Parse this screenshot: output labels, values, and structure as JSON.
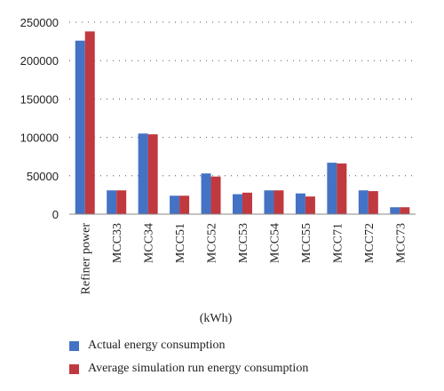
{
  "chart_data": {
    "type": "bar",
    "categories": [
      "Refiner power",
      "MCC33",
      "MCC34",
      "MCC51",
      "MCC52",
      "MCC53",
      "MCC54",
      "MCC55",
      "MCC71",
      "MCC72",
      "MCC73"
    ],
    "series": [
      {
        "name": "Actual energy consumption",
        "color": "#4472c4",
        "values": [
          226000,
          31000,
          105000,
          24000,
          53000,
          26000,
          31000,
          27000,
          67000,
          31000,
          9000
        ]
      },
      {
        "name": "Average simulation run energy consumption",
        "color": "#c0393f",
        "values": [
          238000,
          31000,
          104000,
          24000,
          49000,
          28000,
          31000,
          23000,
          66000,
          30000,
          9000
        ]
      }
    ],
    "xlabel": "(kWh)",
    "ylabel": "",
    "ylim": [
      0,
      250000
    ],
    "yticks": [
      "0",
      "50000",
      "100000",
      "150000",
      "200000",
      "250000"
    ],
    "grid": "horizontal dotted",
    "legend_placement": "bottom-left"
  }
}
